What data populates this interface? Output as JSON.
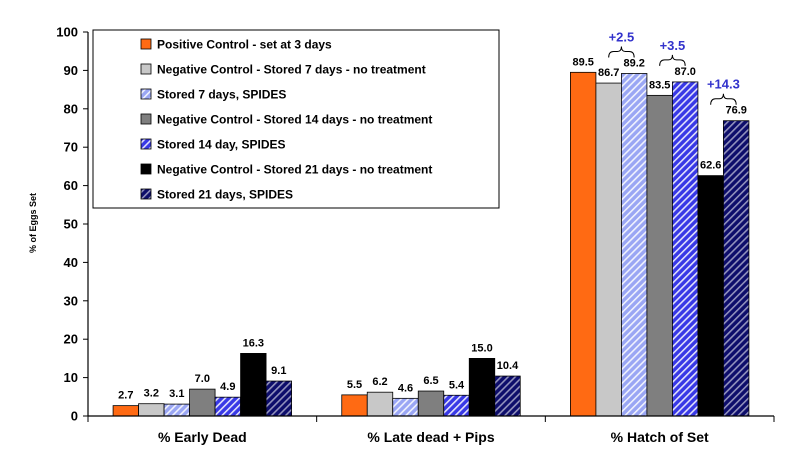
{
  "chart_data": {
    "type": "bar",
    "title": "",
    "xlabel": "",
    "ylabel": "% of Eggs Set",
    "ylim": [
      0,
      100
    ],
    "yticks": [
      0,
      10,
      20,
      30,
      40,
      50,
      60,
      70,
      80,
      90,
      100
    ],
    "grid": false,
    "legend_position": "top-left",
    "categories": [
      "% Early Dead",
      "% Late dead + Pips",
      "% Hatch of Set"
    ],
    "series": [
      {
        "name": "Positive Control - set at 3 days",
        "values": [
          2.7,
          5.5,
          89.5
        ],
        "labels": [
          "2.7",
          "5.5",
          "89.5"
        ],
        "color": "#ff6a13",
        "pattern": "solid"
      },
      {
        "name": "Negative Control - Stored 7 days - no treatment",
        "values": [
          3.2,
          6.2,
          86.7
        ],
        "labels": [
          "3.2",
          "6.2",
          "86.7"
        ],
        "color": "#c8c8c8",
        "pattern": "solid"
      },
      {
        "name": "Stored 7 days, SPIDES",
        "values": [
          3.1,
          4.6,
          89.2
        ],
        "labels": [
          "3.1",
          "4.6",
          "89.2"
        ],
        "color": "#9aa6f4",
        "pattern": "hatch"
      },
      {
        "name": "Negative Control - Stored 14 days - no treatment",
        "values": [
          7.0,
          6.5,
          83.5
        ],
        "labels": [
          "7.0",
          "6.5",
          "83.5"
        ],
        "color": "#7f7f7f",
        "pattern": "solid"
      },
      {
        "name": "Stored 14 day, SPIDES",
        "values": [
          4.9,
          5.4,
          87.0
        ],
        "labels": [
          "4.9",
          "5.4",
          "87.0"
        ],
        "color": "#3838e6",
        "pattern": "hatch"
      },
      {
        "name": "Negative Control - Stored 21 days - no treatment",
        "values": [
          16.3,
          15.0,
          62.6
        ],
        "labels": [
          "16.3",
          "15.0",
          "62.6"
        ],
        "color": "#000000",
        "pattern": "solid"
      },
      {
        "name": "Stored 21 days, SPIDES",
        "values": [
          9.1,
          10.4,
          76.9
        ],
        "labels": [
          "9.1",
          "10.4",
          "76.9"
        ],
        "color": "#0d0d6b",
        "pattern": "hatch"
      }
    ],
    "annotations": [
      {
        "text": "+2.5",
        "category": 2,
        "from_series": 1,
        "to_series": 2,
        "color": "#3333cc"
      },
      {
        "text": "+3.5",
        "category": 2,
        "from_series": 3,
        "to_series": 4,
        "color": "#3333cc"
      },
      {
        "text": "+14.3",
        "category": 2,
        "from_series": 5,
        "to_series": 6,
        "color": "#3333cc"
      }
    ]
  }
}
